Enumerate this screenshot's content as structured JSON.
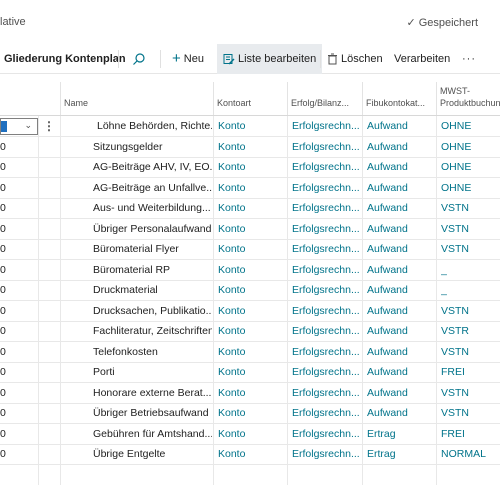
{
  "window": {
    "title_fragment": "lative",
    "saved_status": "Gespeichert"
  },
  "actionbar": {
    "page_name": "Gliederung Kontenplan",
    "new_label": "Neu",
    "edit_list_label": "Liste bearbeiten",
    "delete_label": "Löschen",
    "process_label": "Verarbeiten",
    "more_label": "···"
  },
  "table": {
    "headers": {
      "name": "Name",
      "kontoart": "Kontoart",
      "erfolg": "Erfolg/Bilanz...",
      "fibu": "Fibukontokat...",
      "mwst_line1": "MWST-",
      "mwst_line2": "Produktbuchun"
    },
    "rows": [
      {
        "no": "0",
        "name": "Löhne Behörden, Richte...",
        "kontoart": "Konto",
        "erfolg": "Erfolgsrechn...",
        "fibu": "Aufwand",
        "mwst": "OHNE"
      },
      {
        "no": "0",
        "name": "Sitzungsgelder",
        "kontoart": "Konto",
        "erfolg": "Erfolgsrechn...",
        "fibu": "Aufwand",
        "mwst": "OHNE"
      },
      {
        "no": "0",
        "name": "AG-Beiträge AHV, IV, EO...",
        "kontoart": "Konto",
        "erfolg": "Erfolgsrechn...",
        "fibu": "Aufwand",
        "mwst": "OHNE"
      },
      {
        "no": "0",
        "name": "AG-Beiträge an Unfallve...",
        "kontoart": "Konto",
        "erfolg": "Erfolgsrechn...",
        "fibu": "Aufwand",
        "mwst": "OHNE"
      },
      {
        "no": "0",
        "name": "Aus- und Weiterbildung...",
        "kontoart": "Konto",
        "erfolg": "Erfolgsrechn...",
        "fibu": "Aufwand",
        "mwst": "VSTN"
      },
      {
        "no": "0",
        "name": "Übriger Personalaufwand",
        "kontoart": "Konto",
        "erfolg": "Erfolgsrechn...",
        "fibu": "Aufwand",
        "mwst": "VSTN"
      },
      {
        "no": "0",
        "name": "Büromaterial Flyer",
        "kontoart": "Konto",
        "erfolg": "Erfolgsrechn...",
        "fibu": "Aufwand",
        "mwst": "VSTN"
      },
      {
        "no": "0",
        "name": "Büromaterial RP",
        "kontoart": "Konto",
        "erfolg": "Erfolgsrechn...",
        "fibu": "Aufwand",
        "mwst": "_"
      },
      {
        "no": "0",
        "name": "Druckmaterial",
        "kontoart": "Konto",
        "erfolg": "Erfolgsrechn...",
        "fibu": "Aufwand",
        "mwst": "_"
      },
      {
        "no": "0",
        "name": "Drucksachen, Publikatio...",
        "kontoart": "Konto",
        "erfolg": "Erfolgsrechn...",
        "fibu": "Aufwand",
        "mwst": "VSTN"
      },
      {
        "no": "0",
        "name": "Fachliteratur, Zeitschriften",
        "kontoart": "Konto",
        "erfolg": "Erfolgsrechn...",
        "fibu": "Aufwand",
        "mwst": "VSTR"
      },
      {
        "no": "0",
        "name": "Telefonkosten",
        "kontoart": "Konto",
        "erfolg": "Erfolgsrechn...",
        "fibu": "Aufwand",
        "mwst": "VSTN"
      },
      {
        "no": "0",
        "name": "Porti",
        "kontoart": "Konto",
        "erfolg": "Erfolgsrechn...",
        "fibu": "Aufwand",
        "mwst": "FREI"
      },
      {
        "no": "0",
        "name": "Honorare externe Berat...",
        "kontoart": "Konto",
        "erfolg": "Erfolgsrechn...",
        "fibu": "Aufwand",
        "mwst": "VSTN"
      },
      {
        "no": "0",
        "name": "Übriger Betriebsaufwand",
        "kontoart": "Konto",
        "erfolg": "Erfolgsrechn...",
        "fibu": "Aufwand",
        "mwst": "VSTN"
      },
      {
        "no": "0",
        "name": "Gebühren für Amtshand...",
        "kontoart": "Konto",
        "erfolg": "Erfolgsrechn...",
        "fibu": "Ertrag",
        "mwst": "FREI"
      },
      {
        "no": "0",
        "name": "Übrige Entgelte",
        "kontoart": "Konto",
        "erfolg": "Erfolgsrechn...",
        "fibu": "Ertrag",
        "mwst": "NORMAL"
      }
    ]
  },
  "icons": {
    "saved": "check-icon",
    "search": "search-icon",
    "new": "plus-icon",
    "edit_list": "edit-list-icon",
    "delete": "trash-icon",
    "row_menu": "vertical-dots-icon",
    "dropdown": "chevron-down-icon"
  },
  "colors": {
    "link": "#00738a",
    "selection": "#1f6fbf",
    "active_action_bg": "#e8ebee"
  }
}
